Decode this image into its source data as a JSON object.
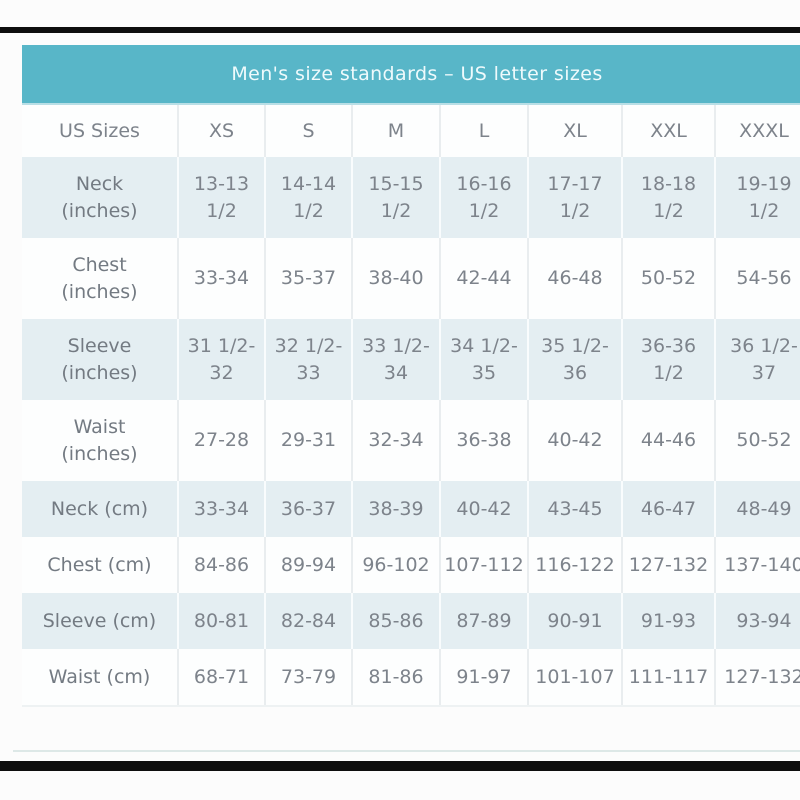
{
  "frame": {
    "bar_color": "#0e0e0e"
  },
  "table": {
    "title": "Men's size standards – US letter sizes",
    "theme": {
      "header_bg": "#58b6c8",
      "header_text": "#eefafc",
      "row_alt_bg": "#e4eef2",
      "row_bg": "#fdfefe",
      "text_color": "#7d838b"
    },
    "columns": [
      "US Sizes",
      "XS",
      "S",
      "M",
      "L",
      "XL",
      "XXL",
      "XXXL"
    ],
    "rows": [
      {
        "label": "Neck\n(inches)",
        "values": [
          "13-13\n1/2",
          "14-14\n1/2",
          "15-15\n1/2",
          "16-16\n1/2",
          "17-17\n1/2",
          "18-18\n1/2",
          "19-19\n1/2"
        ]
      },
      {
        "label": "Chest\n(inches)",
        "values": [
          "33-34",
          "35-37",
          "38-40",
          "42-44",
          "46-48",
          "50-52",
          "54-56"
        ]
      },
      {
        "label": "Sleeve\n(inches)",
        "values": [
          "31 1/2-\n32",
          "32 1/2-\n33",
          "33 1/2-\n34",
          "34 1/2-\n35",
          "35 1/2-\n36",
          "36-36\n1/2",
          "36 1/2-\n37"
        ]
      },
      {
        "label": "Waist\n(inches)",
        "values": [
          "27-28",
          "29-31",
          "32-34",
          "36-38",
          "40-42",
          "44-46",
          "50-52"
        ]
      },
      {
        "label": "Neck (cm)",
        "values": [
          "33-34",
          "36-37",
          "38-39",
          "40-42",
          "43-45",
          "46-47",
          "48-49"
        ]
      },
      {
        "label": "Chest (cm)",
        "values": [
          "84-86",
          "89-94",
          "96-102",
          "107-112",
          "116-122",
          "127-132",
          "137-140"
        ]
      },
      {
        "label": "Sleeve (cm)",
        "values": [
          "80-81",
          "82-84",
          "85-86",
          "87-89",
          "90-91",
          "91-93",
          "93-94"
        ]
      },
      {
        "label": "Waist (cm)",
        "values": [
          "68-71",
          "73-79",
          "81-86",
          "91-97",
          "101-107",
          "111-117",
          "127-132"
        ]
      }
    ]
  }
}
